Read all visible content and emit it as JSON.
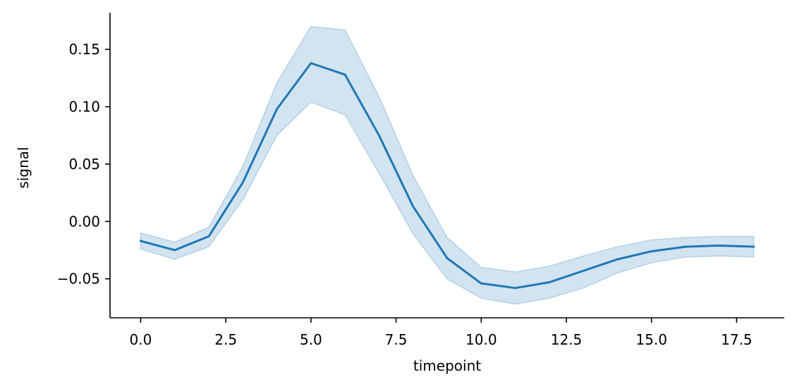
{
  "chart_data": {
    "type": "line",
    "title": "",
    "xlabel": "timepoint",
    "ylabel": "signal",
    "xlim": [
      -0.9,
      18.9
    ],
    "ylim": [
      -0.084,
      0.182
    ],
    "xticks": [
      0.0,
      2.5,
      5.0,
      7.5,
      10.0,
      12.5,
      15.0,
      17.5
    ],
    "xtick_labels": [
      "0.0",
      "2.5",
      "5.0",
      "7.5",
      "10.0",
      "12.5",
      "15.0",
      "17.5"
    ],
    "yticks": [
      -0.05,
      0.0,
      0.05,
      0.1,
      0.15
    ],
    "ytick_labels": [
      "−0.05",
      "0.00",
      "0.05",
      "0.10",
      "0.15"
    ],
    "grid": false,
    "series": [
      {
        "color": "#1f77b4",
        "band_color": "#1f77b4",
        "band_opacity": 0.2,
        "x": [
          0,
          1,
          2,
          3,
          4,
          5,
          6,
          7,
          8,
          9,
          10,
          11,
          12,
          13,
          14,
          15,
          16,
          17,
          18
        ],
        "y": [
          -0.017,
          -0.025,
          -0.013,
          0.034,
          0.098,
          0.138,
          0.128,
          0.075,
          0.013,
          -0.032,
          -0.054,
          -0.058,
          -0.053,
          -0.043,
          -0.033,
          -0.026,
          -0.022,
          -0.021,
          -0.022
        ],
        "lower": [
          -0.024,
          -0.033,
          -0.022,
          0.019,
          0.075,
          0.104,
          0.093,
          0.042,
          -0.011,
          -0.05,
          -0.067,
          -0.072,
          -0.067,
          -0.058,
          -0.045,
          -0.036,
          -0.031,
          -0.03,
          -0.031
        ],
        "upper": [
          -0.01,
          -0.018,
          -0.005,
          0.048,
          0.121,
          0.17,
          0.167,
          0.109,
          0.04,
          -0.014,
          -0.04,
          -0.044,
          -0.039,
          -0.03,
          -0.022,
          -0.016,
          -0.014,
          -0.013,
          -0.013
        ]
      }
    ]
  }
}
